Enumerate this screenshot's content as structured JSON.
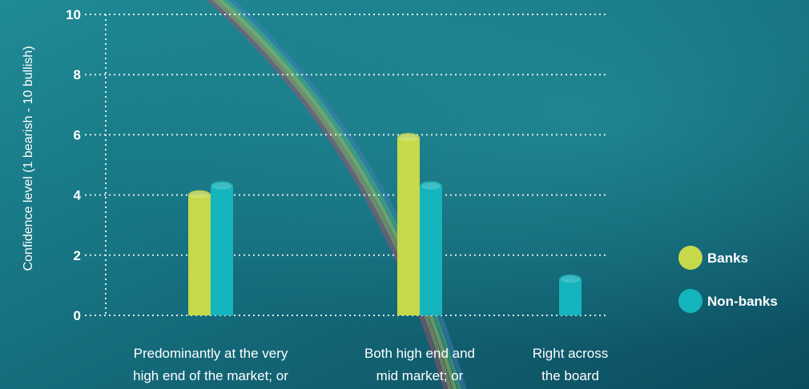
{
  "chart_data": {
    "type": "bar",
    "ylabel": "Confidence level (1 bearish - 10 bullish)",
    "ylim": [
      0,
      10
    ],
    "yticks": [
      0,
      2,
      4,
      6,
      8,
      10
    ],
    "grid": true,
    "legend_position": "right",
    "categories": [
      [
        "Predominantly at the very",
        "high end of the market; or"
      ],
      [
        "Both high end and",
        "mid market; or"
      ],
      [
        "Right across",
        "the board"
      ]
    ],
    "series": [
      {
        "name": "Banks",
        "color": "#c6d94a",
        "values": [
          4.0,
          5.9,
          null
        ]
      },
      {
        "name": "Non-banks",
        "color": "#14b5bd",
        "values": [
          4.3,
          4.3,
          1.2
        ]
      }
    ]
  },
  "colors": {
    "background": "#0e5565",
    "gridline": "#ffffff",
    "text": "#ffffff"
  }
}
